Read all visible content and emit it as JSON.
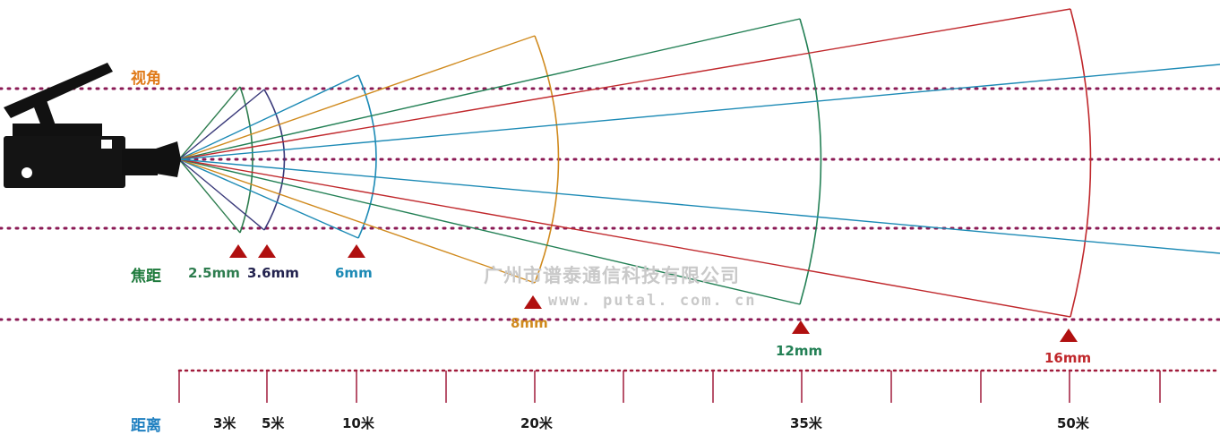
{
  "labels": {
    "view_angle": "视角",
    "focal_length": "焦距",
    "distance": "距离"
  },
  "watermark": {
    "company": "广州市谱泰通信科技有限公司",
    "url": "www. putal. com. cn"
  },
  "lenses": [
    {
      "label": "2.5mm",
      "color": "#2e7d4f",
      "arc_color": "#2e7d4f"
    },
    {
      "label": "3.6mm",
      "color": "#23234f",
      "arc_color": "#3a3a7a"
    },
    {
      "label": "6mm",
      "color": "#1c8ab5",
      "arc_color": "#1c8ab5"
    },
    {
      "label": "8mm",
      "color": "#d08a1e",
      "arc_color": "#d08a1e"
    },
    {
      "label": "12mm",
      "color": "#238055",
      "arc_color": "#238055"
    },
    {
      "label": "16mm",
      "color": "#c0282c",
      "arc_color": "#c0282c"
    }
  ],
  "distances": [
    "3米",
    "5米",
    "10米",
    "20米",
    "35米",
    "50米"
  ],
  "colors": {
    "label_orange": "#e07b1a",
    "label_green": "#1e7a3c",
    "label_blue": "#1e7fc0",
    "dotted_guide": "#8b1a55",
    "ruler": "#a01a3a",
    "marker": "#b01010",
    "camera": "#111111"
  }
}
